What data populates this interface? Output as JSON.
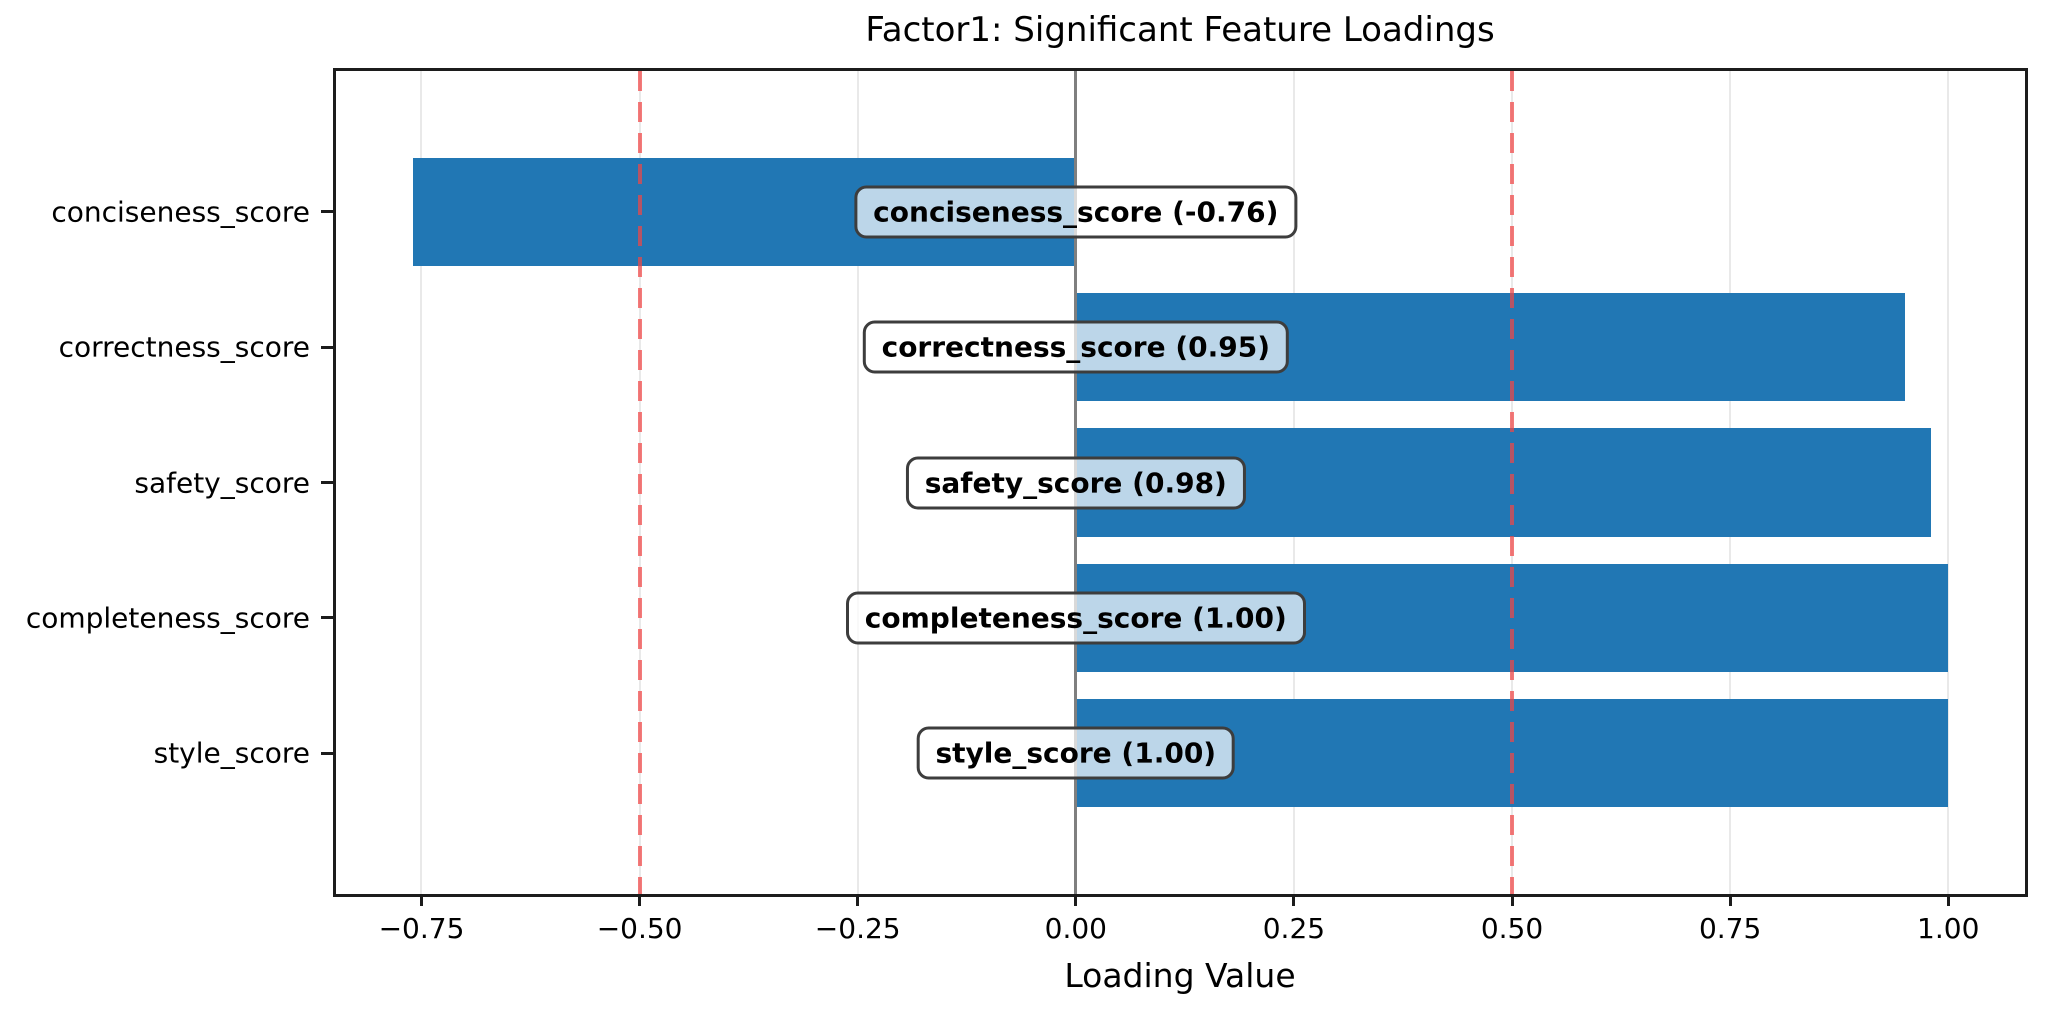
{
  "title": "Factor1: Significant Feature Loadings",
  "x_axis_label": "Loading Value",
  "chart_data": {
    "type": "bar",
    "orientation": "horizontal",
    "title": "Factor1: Significant Feature Loadings",
    "xlabel": "Loading Value",
    "ylabel": "",
    "categories": [
      "conciseness_score",
      "correctness_score",
      "safety_score",
      "completeness_score",
      "style_score"
    ],
    "values": [
      -0.76,
      0.95,
      0.98,
      1.0,
      1.0
    ],
    "bar_labels": [
      "conciseness_score (-0.76)",
      "correctness_score (0.95)",
      "safety_score (0.98)",
      "completeness_score (1.00)",
      "style_score (1.00)"
    ],
    "xlim": [
      -0.848,
      1.088
    ],
    "x_ticks": [
      -0.75,
      -0.5,
      -0.25,
      0.0,
      0.25,
      0.5,
      0.75,
      1.0
    ],
    "x_tick_labels": [
      "−0.75",
      "−0.50",
      "−0.25",
      "0.00",
      "0.25",
      "0.50",
      "0.75",
      "1.00"
    ],
    "reference_lines": {
      "zero": 0.0,
      "thresholds": [
        -0.5,
        0.5
      ]
    },
    "grid": true,
    "legend": "none",
    "colors": {
      "bar": "#2177b4",
      "zero_line": "#7f7f7f",
      "threshold_line": "rgba(240,70,70,0.72)",
      "grid": "#e9e9e9",
      "label_box_border": "#3d3d3d",
      "label_box_fill": "rgba(255,255,255,0.70)"
    }
  }
}
